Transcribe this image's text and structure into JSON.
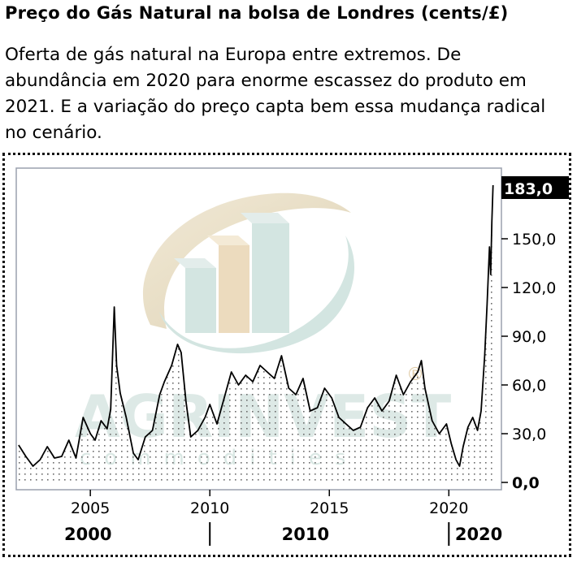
{
  "header": {
    "title": "Preço do Gás Natural na bolsa de Londres (cents/£)",
    "subtitle": "Oferta de gás natural na Europa entre extremos. De abundância em 2020 para enorme escassez do produto em 2021. E a variação do preço capta bem essa mudança radical no cenário."
  },
  "watermark": {
    "brand": "AGRINVEST",
    "tagline": "commodities",
    "registered": "®"
  },
  "colors": {
    "line": "#000000",
    "plot_border": "#9aa0ad",
    "highlight_bg": "#000000",
    "highlight_text": "#ffffff",
    "watermark_tan": "#e8dcc2",
    "watermark_teal": "#cfe3de"
  },
  "chart_data": {
    "type": "area",
    "ylim": [
      0,
      195
    ],
    "xlim": [
      2001.9,
      2022.2
    ],
    "y_ticks": [
      "0,0",
      "30,0",
      "60,0",
      "90,0",
      "120,0",
      "150,0"
    ],
    "last_value_label": "183,0",
    "x_ticks": [
      "2005",
      "2010",
      "2015",
      "2020"
    ],
    "decade_labels": [
      "2000",
      "2010",
      "2020"
    ],
    "series": [
      {
        "x": [
          2002.0,
          2002.3,
          2002.6,
          2002.9,
          2003.2,
          2003.5,
          2003.8,
          2004.1,
          2004.4,
          2004.7,
          2005.0,
          2005.2,
          2005.45,
          2005.7,
          2005.85,
          2006.0,
          2006.1,
          2006.25,
          2006.5,
          2006.8,
          2007.0,
          2007.3,
          2007.6,
          2007.9,
          2008.1,
          2008.4,
          2008.65,
          2008.8,
          2009.0,
          2009.2,
          2009.5,
          2009.8,
          2010.0,
          2010.3,
          2010.6,
          2010.9,
          2011.2,
          2011.5,
          2011.8,
          2012.1,
          2012.4,
          2012.7,
          2013.0,
          2013.3,
          2013.6,
          2013.9,
          2014.2,
          2014.5,
          2014.8,
          2015.1,
          2015.4,
          2015.7,
          2016.0,
          2016.3,
          2016.6,
          2016.9,
          2017.2,
          2017.5,
          2017.8,
          2018.1,
          2018.4,
          2018.7,
          2018.85,
          2019.0,
          2019.3,
          2019.6,
          2019.9,
          2020.1,
          2020.3,
          2020.45,
          2020.6,
          2020.8,
          2021.0,
          2021.2,
          2021.35,
          2021.5,
          2021.6,
          2021.7,
          2021.75,
          2021.8,
          2021.85
        ],
        "values": [
          23,
          16,
          10,
          14,
          22,
          15,
          16,
          26,
          15,
          40,
          30,
          26,
          38,
          33,
          45,
          108,
          72,
          55,
          40,
          18,
          14,
          28,
          32,
          54,
          62,
          72,
          85,
          80,
          50,
          28,
          32,
          40,
          48,
          36,
          52,
          68,
          60,
          66,
          62,
          72,
          68,
          64,
          78,
          58,
          54,
          64,
          44,
          46,
          58,
          52,
          40,
          36,
          32,
          34,
          46,
          52,
          44,
          50,
          66,
          54,
          62,
          68,
          75,
          58,
          38,
          30,
          36,
          24,
          14,
          10,
          22,
          34,
          40,
          32,
          44,
          78,
          110,
          145,
          128,
          160,
          183
        ]
      }
    ]
  }
}
